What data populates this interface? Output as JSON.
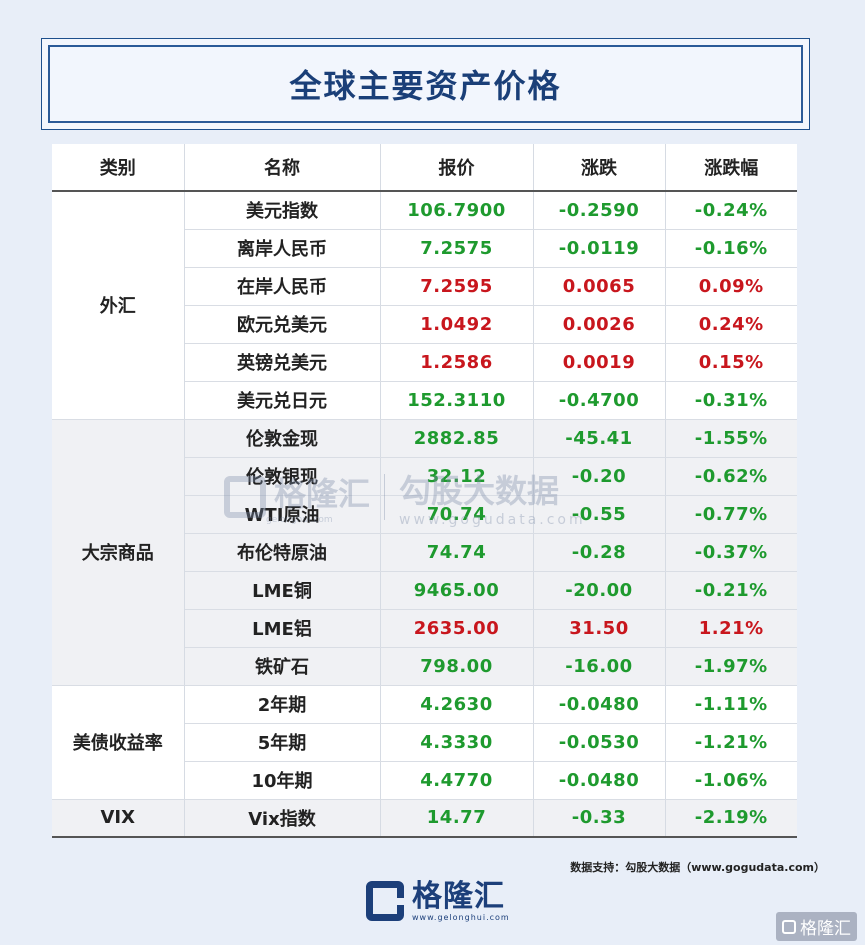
{
  "title": "全球主要资产价格",
  "table": {
    "headers": [
      "类别",
      "名称",
      "报价",
      "涨跌",
      "涨跌幅"
    ],
    "groups": [
      {
        "category": "外汇",
        "rows": [
          {
            "name": "美元指数",
            "price": "106.7900",
            "change": "-0.2590",
            "pct": "-0.24%",
            "dir": "down"
          },
          {
            "name": "离岸人民币",
            "price": "7.2575",
            "change": "-0.0119",
            "pct": "-0.16%",
            "dir": "down"
          },
          {
            "name": "在岸人民币",
            "price": "7.2595",
            "change": "0.0065",
            "pct": "0.09%",
            "dir": "up"
          },
          {
            "name": "欧元兑美元",
            "price": "1.0492",
            "change": "0.0026",
            "pct": "0.24%",
            "dir": "up"
          },
          {
            "name": "英镑兑美元",
            "price": "1.2586",
            "change": "0.0019",
            "pct": "0.15%",
            "dir": "up"
          },
          {
            "name": "美元兑日元",
            "price": "152.3110",
            "change": "-0.4700",
            "pct": "-0.31%",
            "dir": "down"
          }
        ]
      },
      {
        "category": "大宗商品",
        "rows": [
          {
            "name": "伦敦金现",
            "price": "2882.85",
            "change": "-45.41",
            "pct": "-1.55%",
            "dir": "down"
          },
          {
            "name": "伦敦银现",
            "price": "32.12",
            "change": "-0.20",
            "pct": "-0.62%",
            "dir": "down"
          },
          {
            "name": "WTI原油",
            "price": "70.74",
            "change": "-0.55",
            "pct": "-0.77%",
            "dir": "down"
          },
          {
            "name": "布伦特原油",
            "price": "74.74",
            "change": "-0.28",
            "pct": "-0.37%",
            "dir": "down"
          },
          {
            "name": "LME铜",
            "price": "9465.00",
            "change": "-20.00",
            "pct": "-0.21%",
            "dir": "down"
          },
          {
            "name": "LME铝",
            "price": "2635.00",
            "change": "31.50",
            "pct": "1.21%",
            "dir": "up"
          },
          {
            "name": "铁矿石",
            "price": "798.00",
            "change": "-16.00",
            "pct": "-1.97%",
            "dir": "down"
          }
        ]
      },
      {
        "category": "美债收益率",
        "rows": [
          {
            "name": "2年期",
            "price": "4.2630",
            "change": "-0.0480",
            "pct": "-1.11%",
            "dir": "down"
          },
          {
            "name": "5年期",
            "price": "4.3330",
            "change": "-0.0530",
            "pct": "-1.21%",
            "dir": "down"
          },
          {
            "name": "10年期",
            "price": "4.4770",
            "change": "-0.0480",
            "pct": "-1.06%",
            "dir": "down"
          }
        ]
      },
      {
        "category": "VIX",
        "rows": [
          {
            "name": "Vix指数",
            "price": "14.77",
            "change": "-0.33",
            "pct": "-2.19%",
            "dir": "down"
          }
        ]
      }
    ]
  },
  "colors": {
    "up": "#c8161d",
    "down": "#1e9a2e",
    "title": "#1a3f78"
  },
  "watermark": {
    "brand": "格隆汇",
    "brand_url": "gelonghui.com",
    "partner": "勾股大数据",
    "partner_url": "www.gogudata.com"
  },
  "source": "数据支持：勾股大数据（www.gogudata.com）",
  "brand": {
    "name": "格隆汇",
    "url": "www.gelonghui.com",
    "logo_icon": "gelonghui-logo-icon"
  },
  "corner_badge": "格隆汇"
}
